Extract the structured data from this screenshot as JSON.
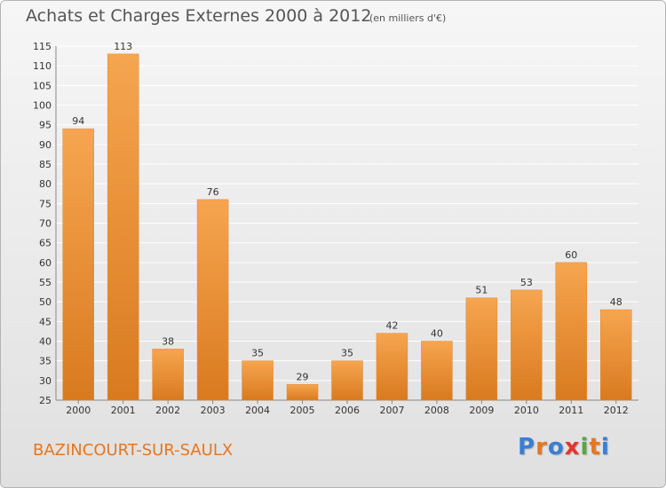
{
  "header": {
    "title": "Achats et Charges Externes 2000 à 2012",
    "subtitle": "(en milliers d'€)"
  },
  "footer": {
    "commune": "BAZINCOURT-SUR-SAULX",
    "brand": [
      "P",
      "r",
      "o",
      "x",
      "i",
      "t",
      "i"
    ],
    "brand_colors": [
      "#3a7fd1",
      "#e8761e",
      "#3a7fd1",
      "#e5342f",
      "#57a83e",
      "#e8761e",
      "#3a7fd1"
    ]
  },
  "colors": {
    "bar": "#f19a3e",
    "bar_dark": "#d97a1f",
    "grid": "#ffffff"
  },
  "chart_data": {
    "type": "bar",
    "title": "Achats et Charges Externes 2000 à 2012",
    "subtitle": "(en milliers d'€)",
    "categories": [
      "2000",
      "2001",
      "2002",
      "2003",
      "2004",
      "2005",
      "2006",
      "2007",
      "2008",
      "2009",
      "2010",
      "2011",
      "2012"
    ],
    "values": [
      94,
      113,
      38,
      76,
      35,
      29,
      35,
      42,
      40,
      51,
      53,
      60,
      48
    ],
    "ylim": [
      25,
      115
    ],
    "yticks": [
      25,
      30,
      35,
      40,
      45,
      50,
      55,
      60,
      65,
      70,
      75,
      80,
      85,
      90,
      95,
      100,
      105,
      110,
      115
    ],
    "grid": true,
    "legend": "none"
  }
}
